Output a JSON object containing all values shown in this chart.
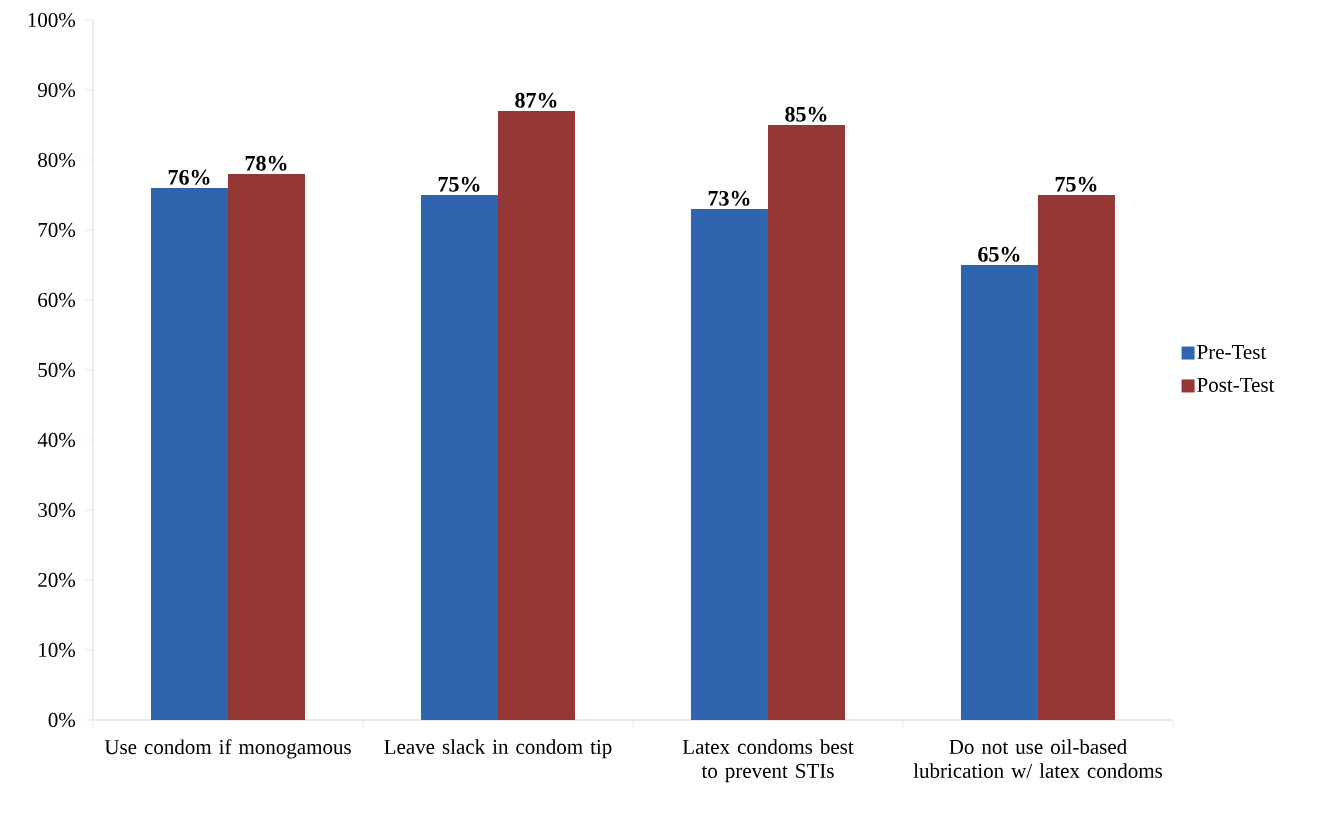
{
  "chart_data": {
    "type": "bar",
    "categories": [
      "Use condom if monogamous",
      "Leave slack in condom tip",
      "Latex condoms best to prevent STIs",
      "Do not use oil-based lubrication w/ latex condoms"
    ],
    "series": [
      {
        "name": "Pre-Test",
        "color": "#2f65ae",
        "values": [
          76,
          75,
          73,
          65
        ],
        "value_labels": [
          "76%",
          "75%",
          "73%",
          "65%"
        ]
      },
      {
        "name": "Post-Test",
        "color": "#953735",
        "values": [
          78,
          87,
          85,
          75
        ],
        "value_labels": [
          "78%",
          "87%",
          "85%",
          "75%"
        ]
      }
    ],
    "ylim": [
      0,
      100
    ],
    "yticks": [
      {
        "value": 0,
        "label": "0%"
      },
      {
        "value": 10,
        "label": "10%"
      },
      {
        "value": 20,
        "label": "20%"
      },
      {
        "value": 30,
        "label": "30%"
      },
      {
        "value": 40,
        "label": "40%"
      },
      {
        "value": 50,
        "label": "50%"
      },
      {
        "value": 60,
        "label": "60%"
      },
      {
        "value": 70,
        "label": "70%"
      },
      {
        "value": 80,
        "label": "80%"
      },
      {
        "value": 90,
        "label": "90%"
      },
      {
        "value": 100,
        "label": "100%"
      }
    ],
    "grid": false,
    "legend": "right"
  }
}
